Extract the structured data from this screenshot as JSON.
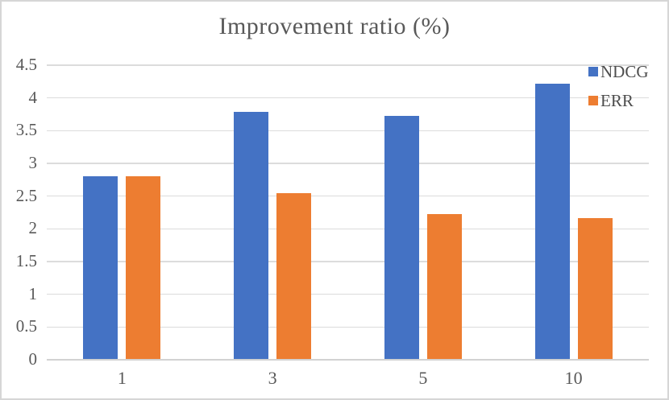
{
  "chart_data": {
    "type": "bar",
    "title": "Improvement ratio (%)",
    "categories": [
      "1",
      "3",
      "5",
      "10"
    ],
    "series": [
      {
        "name": "NDCG",
        "color": "#4472C4",
        "values": [
          2.79,
          3.77,
          3.71,
          4.2
        ]
      },
      {
        "name": "ERR",
        "color": "#ED7D31",
        "values": [
          2.79,
          2.53,
          2.21,
          2.15
        ]
      }
    ],
    "xlabel": "",
    "ylabel": "",
    "ylim": [
      0,
      4.5
    ],
    "ytick_step": 0.5,
    "ytick_labels": [
      "0",
      "0.5",
      "1",
      "1.5",
      "2",
      "2.5",
      "3",
      "3.5",
      "4",
      "4.5"
    ],
    "grid": true,
    "legend_position": "top-right",
    "colors": {
      "grid": "#DCDCDC",
      "axis": "#D2D2D2",
      "text": "#595959",
      "border": "#D6D6D6"
    }
  }
}
